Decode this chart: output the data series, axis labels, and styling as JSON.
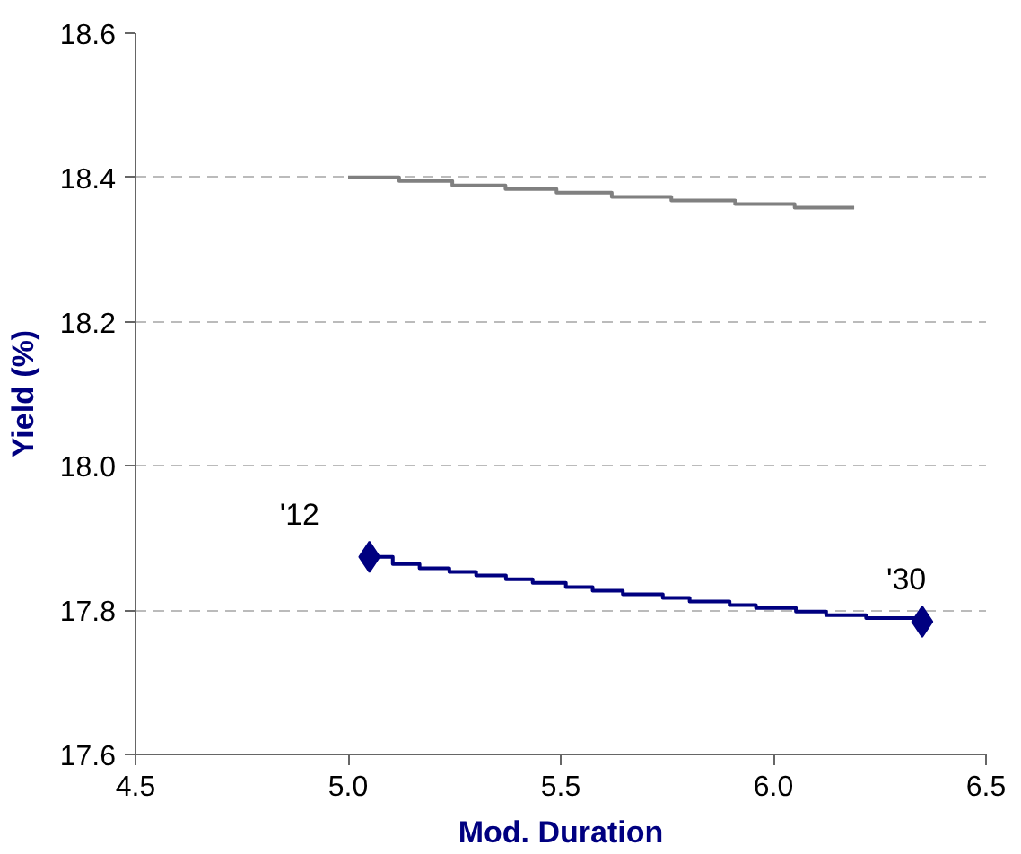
{
  "chart_data": {
    "type": "step",
    "xlabel": "Mod. Duration",
    "ylabel": "Yield (%)",
    "xlim": [
      4.5,
      6.5
    ],
    "xticks": [
      4.5,
      {
        "value": 5,
        "label": "5.0"
      },
      5.5,
      {
        "value": 6,
        "label": "6.0"
      },
      6.5
    ],
    "ylim": [
      17.6,
      18.6
    ],
    "yticks": [
      17.6,
      17.8,
      {
        "value": 18,
        "label": "18.0"
      },
      18.2,
      18.4,
      18.6
    ],
    "grid": "y",
    "series": [
      {
        "color": "#808080",
        "marker": "none",
        "x": [
          5.0,
          5.12,
          5.245,
          5.37,
          5.49,
          5.62,
          5.76,
          5.91,
          6.05,
          6.19
        ],
        "values": [
          18.4,
          18.395,
          18.389,
          18.384,
          18.379,
          18.373,
          18.368,
          18.363,
          18.358,
          18.358
        ]
      },
      {
        "color": "#000080",
        "marker": "none",
        "x": [
          5.05,
          5.105,
          5.168,
          5.238,
          5.301,
          5.371,
          5.434,
          5.512,
          5.575,
          5.646,
          5.74,
          5.803,
          5.897,
          5.959,
          6.053,
          6.124,
          6.218,
          6.35
        ],
        "values": [
          17.874,
          17.864,
          17.858,
          17.853,
          17.848,
          17.843,
          17.838,
          17.832,
          17.827,
          17.822,
          17.817,
          17.812,
          17.807,
          17.803,
          17.798,
          17.793,
          17.789,
          17.784
        ]
      },
      {
        "type": "scatter",
        "color": "#000080",
        "marker": "diamond",
        "x": [
          5.05,
          6.35
        ],
        "values": [
          17.874,
          17.784
        ]
      }
    ],
    "annotations": [
      {
        "text": "'12",
        "x": 5.05,
        "y": 17.874
      },
      {
        "text": "'30",
        "x": 6.35,
        "y": 17.784
      }
    ]
  }
}
